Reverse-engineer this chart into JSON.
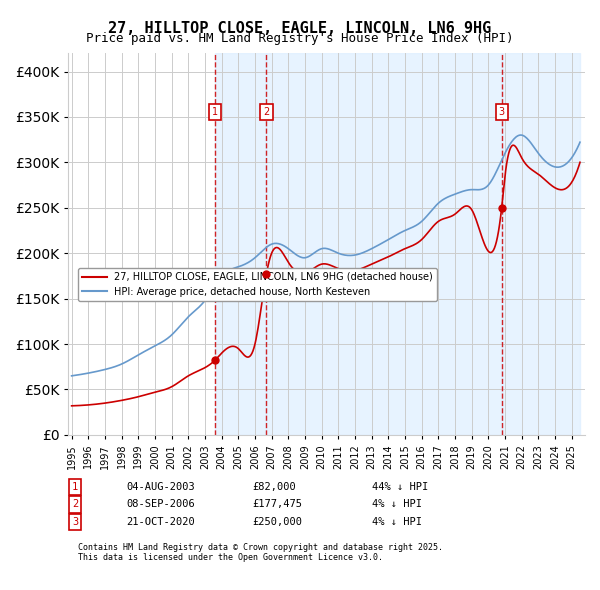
{
  "title": "27, HILLTOP CLOSE, EAGLE, LINCOLN, LN6 9HG",
  "subtitle": "Price paid vs. HM Land Registry's House Price Index (HPI)",
  "ylabel": "",
  "xlabel": "",
  "ylim": [
    0,
    420000
  ],
  "yticks": [
    0,
    50000,
    100000,
    150000,
    200000,
    250000,
    300000,
    350000,
    400000
  ],
  "ytick_labels": [
    "£0",
    "£50K",
    "£100K",
    "£150K",
    "£200K",
    "£250K",
    "£300K",
    "£350K",
    "£400K"
  ],
  "sales": [
    {
      "date_str": "04-AUG-2003",
      "price": 82000,
      "year": 2003.59,
      "label": "1",
      "pct": "44% ↓ HPI"
    },
    {
      "date_str": "08-SEP-2006",
      "price": 177475,
      "year": 2006.69,
      "label": "2",
      "pct": "4% ↓ HPI"
    },
    {
      "date_str": "21-OCT-2020",
      "price": 250000,
      "year": 2020.8,
      "label": "3",
      "pct": "4% ↓ HPI"
    }
  ],
  "legend_line1": "27, HILLTOP CLOSE, EAGLE, LINCOLN, LN6 9HG (detached house)",
  "legend_line2": "HPI: Average price, detached house, North Kesteven",
  "footer1": "Contains HM Land Registry data © Crown copyright and database right 2025.",
  "footer2": "This data is licensed under the Open Government Licence v3.0.",
  "red_color": "#cc0000",
  "blue_color": "#6699cc",
  "shade_color": "#ddeeff",
  "bg_color": "#ffffff",
  "grid_color": "#cccccc"
}
